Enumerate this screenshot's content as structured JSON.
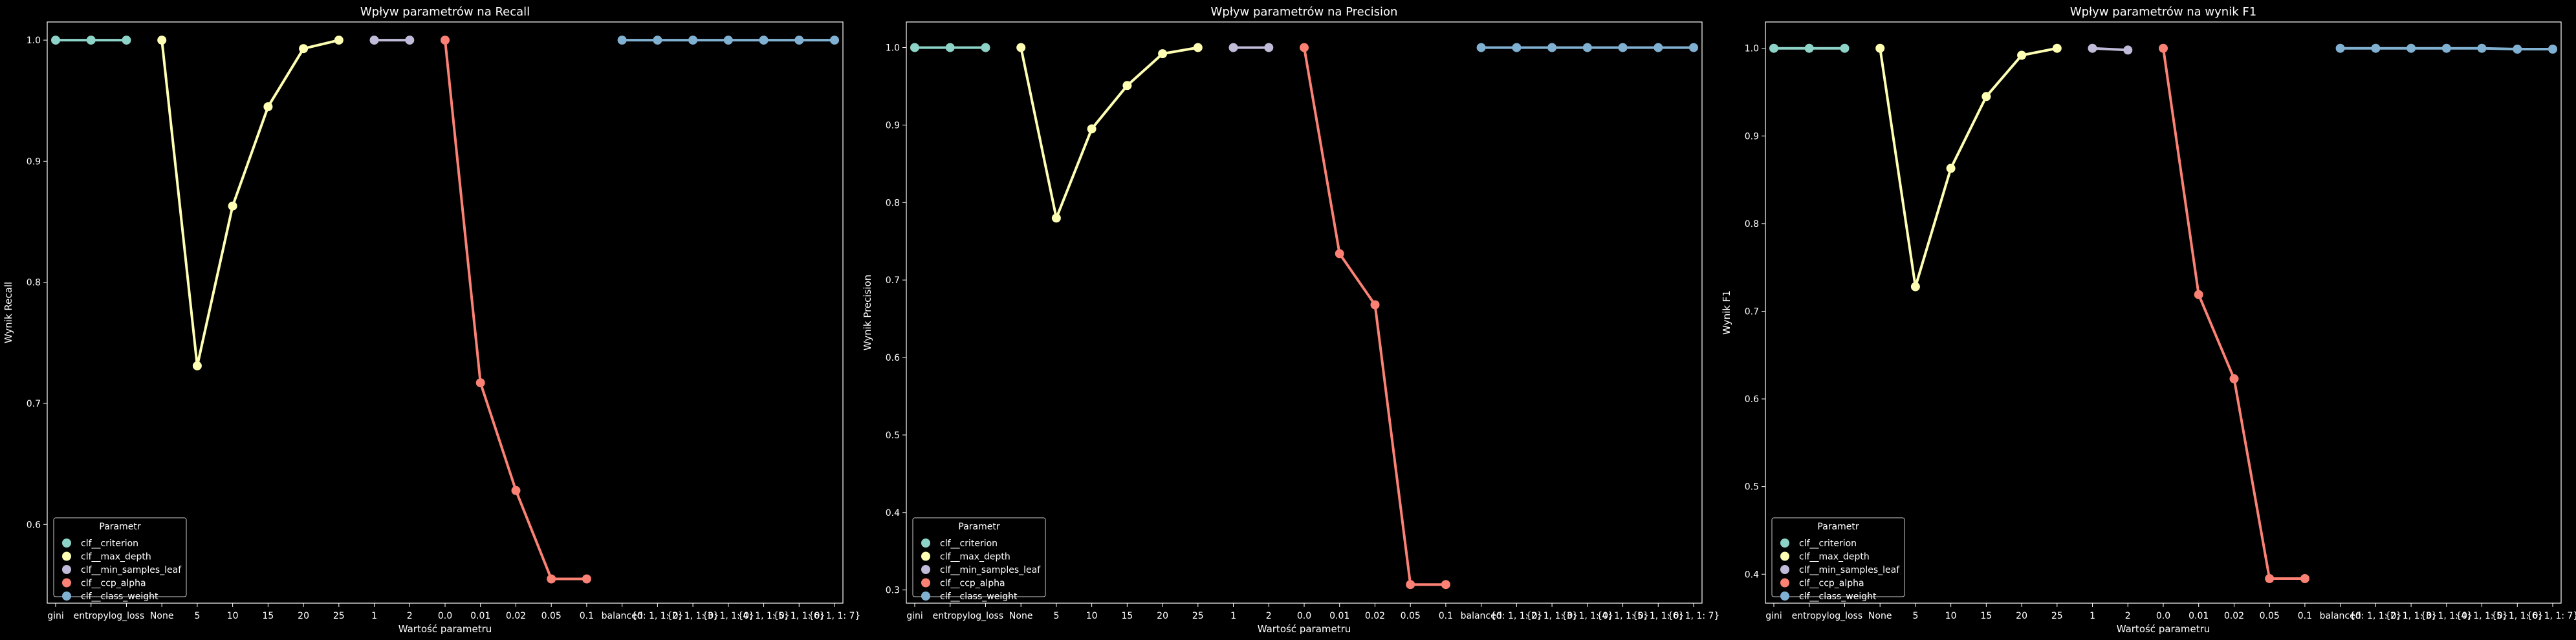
{
  "chart_data": [
    {
      "type": "line",
      "title": "Wpływ parametrów na Recall",
      "xlabel": "Wartość parametru",
      "ylabel": "Wynik Recall",
      "ylim": [
        0.535,
        1.015
      ],
      "yticks": [
        0.6,
        0.7,
        0.8,
        0.9,
        1.0
      ],
      "ytick_labels": [
        "0.6",
        "0.7",
        "0.8",
        "0.9",
        "1.0"
      ],
      "categories": [
        "gini",
        "entropy",
        "log_loss",
        "None",
        "5",
        "10",
        "15",
        "20",
        "25",
        "1",
        "2",
        "0.0",
        "0.01",
        "0.02",
        "0.05",
        "0.1",
        "balanced",
        "{0: 1, 1: 2}",
        "{0: 1, 1: 3}",
        "{0: 1, 1: 4}",
        "{0: 1, 1: 5}",
        "{0: 1, 1: 6}",
        "{0: 1, 1: 7}"
      ],
      "legend_title": "Parametr",
      "legend_position": "lower-left",
      "series": [
        {
          "name": "clf__criterion",
          "color": "#8dd3c7",
          "x": [
            "gini",
            "entropy",
            "log_loss"
          ],
          "values": [
            1.0,
            1.0,
            1.0
          ]
        },
        {
          "name": "clf__max_depth",
          "color": "#feffb3",
          "x": [
            "None",
            "5",
            "10",
            "15",
            "20",
            "25"
          ],
          "values": [
            1.0,
            0.731,
            0.863,
            0.945,
            0.993,
            1.0
          ]
        },
        {
          "name": "clf__min_samples_leaf",
          "color": "#bfbbd9",
          "x": [
            "1",
            "2"
          ],
          "values": [
            1.0,
            1.0
          ]
        },
        {
          "name": "clf__ccp_alpha",
          "color": "#fa8174",
          "x": [
            "0.0",
            "0.01",
            "0.02",
            "0.05",
            "0.1"
          ],
          "values": [
            1.0,
            0.717,
            0.628,
            0.555,
            0.555
          ]
        },
        {
          "name": "clf__class_weight",
          "color": "#81b1d2",
          "x": [
            "balanced",
            "{0: 1, 1: 2}",
            "{0: 1, 1: 3}",
            "{0: 1, 1: 4}",
            "{0: 1, 1: 5}",
            "{0: 1, 1: 6}",
            "{0: 1, 1: 7}"
          ],
          "values": [
            1.0,
            1.0,
            1.0,
            1.0,
            1.0,
            1.0,
            1.0
          ]
        }
      ]
    },
    {
      "type": "line",
      "title": "Wpływ parametrów na Precision",
      "xlabel": "Wartość parametru",
      "ylabel": "Wynik Precision",
      "ylim": [
        0.283,
        1.033
      ],
      "yticks": [
        0.3,
        0.4,
        0.5,
        0.6,
        0.7,
        0.8,
        0.9,
        1.0
      ],
      "ytick_labels": [
        "0.3",
        "0.4",
        "0.5",
        "0.6",
        "0.7",
        "0.8",
        "0.9",
        "1.0"
      ],
      "categories": [
        "gini",
        "entropy",
        "log_loss",
        "None",
        "5",
        "10",
        "15",
        "20",
        "25",
        "1",
        "2",
        "0.0",
        "0.01",
        "0.02",
        "0.05",
        "0.1",
        "balanced",
        "{0: 1, 1: 2}",
        "{0: 1, 1: 3}",
        "{0: 1, 1: 4}",
        "{0: 1, 1: 5}",
        "{0: 1, 1: 6}",
        "{0: 1, 1: 7}"
      ],
      "legend_title": "Parametr",
      "legend_position": "lower-left",
      "series": [
        {
          "name": "clf__criterion",
          "color": "#8dd3c7",
          "x": [
            "gini",
            "entropy",
            "log_loss"
          ],
          "values": [
            1.0,
            1.0,
            1.0
          ]
        },
        {
          "name": "clf__max_depth",
          "color": "#feffb3",
          "x": [
            "None",
            "5",
            "10",
            "15",
            "20",
            "25"
          ],
          "values": [
            1.0,
            0.78,
            0.895,
            0.951,
            0.992,
            1.0
          ]
        },
        {
          "name": "clf__min_samples_leaf",
          "color": "#bfbbd9",
          "x": [
            "1",
            "2"
          ],
          "values": [
            1.0,
            1.0
          ]
        },
        {
          "name": "clf__ccp_alpha",
          "color": "#fa8174",
          "x": [
            "0.0",
            "0.01",
            "0.02",
            "0.05",
            "0.1"
          ],
          "values": [
            1.0,
            0.734,
            0.668,
            0.307,
            0.307
          ]
        },
        {
          "name": "clf__class_weight",
          "color": "#81b1d2",
          "x": [
            "balanced",
            "{0: 1, 1: 2}",
            "{0: 1, 1: 3}",
            "{0: 1, 1: 4}",
            "{0: 1, 1: 5}",
            "{0: 1, 1: 6}",
            "{0: 1, 1: 7}"
          ],
          "values": [
            1.0,
            1.0,
            1.0,
            1.0,
            1.0,
            1.0,
            1.0
          ]
        }
      ]
    },
    {
      "type": "line",
      "title": "Wpływ parametrów na wynik F1",
      "xlabel": "Wartość parametru",
      "ylabel": "Wynik F1",
      "ylim": [
        0.367,
        1.03
      ],
      "yticks": [
        0.4,
        0.5,
        0.6,
        0.7,
        0.8,
        0.9,
        1.0
      ],
      "ytick_labels": [
        "0.4",
        "0.5",
        "0.6",
        "0.7",
        "0.8",
        "0.9",
        "1.0"
      ],
      "categories": [
        "gini",
        "entropy",
        "log_loss",
        "None",
        "5",
        "10",
        "15",
        "20",
        "25",
        "1",
        "2",
        "0.0",
        "0.01",
        "0.02",
        "0.05",
        "0.1",
        "balanced",
        "{0: 1, 1: 2}",
        "{0: 1, 1: 3}",
        "{0: 1, 1: 4}",
        "{0: 1, 1: 5}",
        "{0: 1, 1: 6}",
        "{0: 1, 1: 7}"
      ],
      "legend_title": "Parametr",
      "legend_position": "lower-left",
      "series": [
        {
          "name": "clf__criterion",
          "color": "#8dd3c7",
          "x": [
            "gini",
            "entropy",
            "log_loss"
          ],
          "values": [
            1.0,
            1.0,
            1.0
          ]
        },
        {
          "name": "clf__max_depth",
          "color": "#feffb3",
          "x": [
            "None",
            "5",
            "10",
            "15",
            "20",
            "25"
          ],
          "values": [
            1.0,
            0.728,
            0.863,
            0.945,
            0.992,
            1.0
          ]
        },
        {
          "name": "clf__min_samples_leaf",
          "color": "#bfbbd9",
          "x": [
            "1",
            "2"
          ],
          "values": [
            1.0,
            0.998
          ]
        },
        {
          "name": "clf__ccp_alpha",
          "color": "#fa8174",
          "x": [
            "0.0",
            "0.01",
            "0.02",
            "0.05",
            "0.1"
          ],
          "values": [
            1.0,
            0.719,
            0.623,
            0.395,
            0.395
          ]
        },
        {
          "name": "clf__class_weight",
          "color": "#81b1d2",
          "x": [
            "balanced",
            "{0: 1, 1: 2}",
            "{0: 1, 1: 3}",
            "{0: 1, 1: 4}",
            "{0: 1, 1: 5}",
            "{0: 1, 1: 6}",
            "{0: 1, 1: 7}"
          ],
          "values": [
            1.0,
            1.0,
            1.0,
            1.0,
            1.0,
            0.999,
            0.999
          ]
        }
      ]
    }
  ]
}
